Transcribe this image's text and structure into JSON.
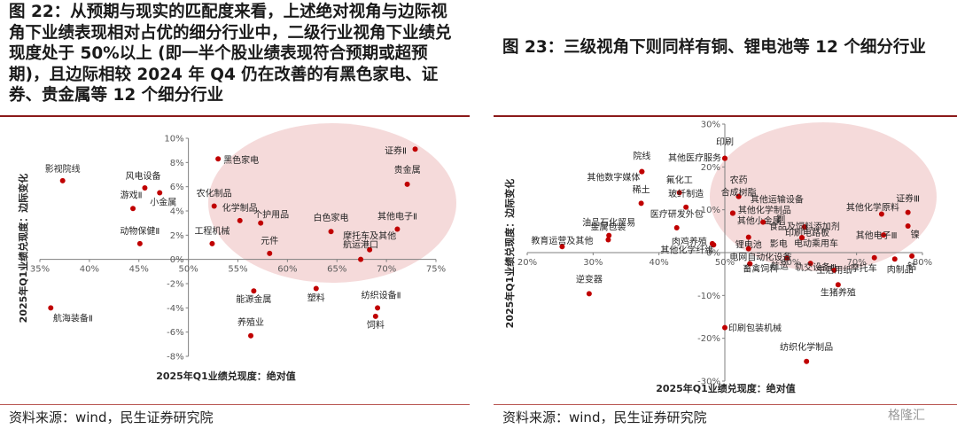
{
  "left": {
    "title": "图 22：从预期与现实的匹配度来看，上述绝对视角与边际视角下业绩表现相对占优的细分行业中，二级行业视角下业绩兑现度处于 50%以上 (即一半个股业绩表现符合预期或超预期)，且边际相较 2024 年 Q4 仍在改善的有黑色家电、证券、贵金属等 12 个细分行业",
    "source": "资料来源：wind，民生证券研究院"
  },
  "right": {
    "title": "图 23：三级视角下则同样有铜、锂电池等 12 个细分行业",
    "source": "资料来源：wind，民生证券研究院"
  },
  "watermark": "格隆汇",
  "colors": {
    "accent": "#8b1a1a",
    "point": "#c00000",
    "highlight": "#f3d3d3",
    "axis": "#7f7f7f"
  },
  "chart_data": [
    {
      "type": "scatter",
      "xlabel": "2025年Q1业绩兑现度：绝对值",
      "ylabel": "2025年Q1业绩兑现度：边际变化",
      "xlim": [
        0.35,
        0.75
      ],
      "ylim": [
        -0.08,
        0.1
      ],
      "xticks": [
        "35%",
        "40%",
        "45%",
        "50%",
        "55%",
        "60%",
        "65%",
        "70%",
        "75%"
      ],
      "yticks": [
        "10%",
        "8%",
        "6%",
        "4%",
        "2%",
        "0%",
        "-2%",
        "-4%",
        "-6%",
        "-8%"
      ],
      "highlight": "ellipse around upper-right quadrant",
      "points": [
        {
          "label": "影视院线",
          "x": 0.373,
          "y": 0.065
        },
        {
          "label": "风电设备",
          "x": 0.456,
          "y": 0.059
        },
        {
          "label": "游戏Ⅱ",
          "x": 0.444,
          "y": 0.042
        },
        {
          "label": "小金属",
          "x": 0.471,
          "y": 0.055
        },
        {
          "label": "动物保健Ⅱ",
          "x": 0.451,
          "y": 0.013
        },
        {
          "label": "航海装备Ⅱ",
          "x": 0.361,
          "y": -0.04
        },
        {
          "label": "黑色家电",
          "x": 0.53,
          "y": 0.083
        },
        {
          "label": "农化制品",
          "x": 0.526,
          "y": 0.044
        },
        {
          "label": "化学制品",
          "x": 0.552,
          "y": 0.032
        },
        {
          "label": "个护用品",
          "x": 0.573,
          "y": 0.03
        },
        {
          "label": "工程机械",
          "x": 0.524,
          "y": 0.013
        },
        {
          "label": "元件",
          "x": 0.582,
          "y": 0.005
        },
        {
          "label": "能源金属",
          "x": 0.566,
          "y": -0.026
        },
        {
          "label": "养殖业",
          "x": 0.563,
          "y": -0.063
        },
        {
          "label": "证券Ⅱ",
          "x": 0.729,
          "y": 0.091
        },
        {
          "label": "贵金属",
          "x": 0.721,
          "y": 0.062
        },
        {
          "label": "白色家电",
          "x": 0.644,
          "y": 0.023
        },
        {
          "label": "其他电子Ⅱ",
          "x": 0.711,
          "y": 0.025
        },
        {
          "label": "摩托车及其他",
          "x": 0.683,
          "y": 0.008
        },
        {
          "label": "航运港口",
          "x": 0.674,
          "y": 0.0
        },
        {
          "label": "塑料",
          "x": 0.629,
          "y": -0.024
        },
        {
          "label": "纺织设备Ⅱ",
          "x": 0.691,
          "y": -0.04
        },
        {
          "label": "饲料",
          "x": 0.689,
          "y": -0.047
        }
      ]
    },
    {
      "type": "scatter",
      "xlabel": "2025年Q1业绩兑现度：绝对值",
      "ylabel": "2025年Q1业绩兑现度：边际变化",
      "xlim": [
        0.2,
        0.8
      ],
      "ylim": [
        -0.3,
        0.3
      ],
      "xticks": [
        "20%",
        "30%",
        "40%",
        "50%",
        "60%",
        "70%",
        "80%"
      ],
      "yticks": [
        "30%",
        "20%",
        "10%",
        "0%",
        "-10%",
        "-20%",
        "-30%"
      ],
      "highlight": "ellipse around upper-right quadrant",
      "points": [
        {
          "label": "院线",
          "x": 0.374,
          "y": 0.189
        },
        {
          "label": "其他数字媒体",
          "x": 0.374,
          "y": 0.189
        },
        {
          "label": "印刷",
          "x": 0.5,
          "y": 0.22
        },
        {
          "label": "其他医疗服务",
          "x": 0.5,
          "y": 0.22
        },
        {
          "label": "氟化工",
          "x": 0.431,
          "y": 0.14
        },
        {
          "label": "稀土",
          "x": 0.373,
          "y": 0.115
        },
        {
          "label": "玻纤制造",
          "x": 0.441,
          "y": 0.106
        },
        {
          "label": "农药",
          "x": 0.521,
          "y": 0.131
        },
        {
          "label": "合成树脂",
          "x": 0.521,
          "y": 0.131
        },
        {
          "label": "医疗研发外包",
          "x": 0.427,
          "y": 0.058
        },
        {
          "label": "油品石化贸易",
          "x": 0.324,
          "y": 0.04
        },
        {
          "label": "金属包装",
          "x": 0.323,
          "y": 0.03
        },
        {
          "label": "教育运营及其他",
          "x": 0.253,
          "y": 0.014
        },
        {
          "label": "其他化学纤维",
          "x": 0.483,
          "y": 0.018
        },
        {
          "label": "肉鸡养殖",
          "x": 0.481,
          "y": 0.021
        },
        {
          "label": "其他运输设备",
          "x": 0.512,
          "y": 0.092
        },
        {
          "label": "其他化学制品",
          "x": 0.512,
          "y": 0.092
        },
        {
          "label": "其他小金属",
          "x": 0.512,
          "y": 0.092
        },
        {
          "label": "铜",
          "x": 0.558,
          "y": 0.071
        },
        {
          "label": "锂电池",
          "x": 0.536,
          "y": 0.036
        },
        {
          "label": "食品及饲料添加剂",
          "x": 0.621,
          "y": 0.06
        },
        {
          "label": "印刷电路板",
          "x": 0.617,
          "y": 0.035
        },
        {
          "label": "电动乘用车",
          "x": 0.617,
          "y": 0.035
        },
        {
          "label": "其他化学原料",
          "x": 0.738,
          "y": 0.09
        },
        {
          "label": "证券Ⅲ",
          "x": 0.778,
          "y": 0.094
        },
        {
          "label": "其他电子Ⅲ",
          "x": 0.741,
          "y": 0.041
        },
        {
          "label": "镍",
          "x": 0.778,
          "y": 0.062
        },
        {
          "label": "影电",
          "x": 0.536,
          "y": 0.009
        },
        {
          "label": "钴",
          "x": 0.784,
          "y": -0.008
        },
        {
          "label": "航运",
          "x": 0.594,
          "y": -0.013
        },
        {
          "label": "轨交设备Ⅲ",
          "x": 0.63,
          "y": -0.025
        },
        {
          "label": "摩托车",
          "x": 0.727,
          "y": -0.012
        },
        {
          "label": "肉制品",
          "x": 0.758,
          "y": -0.015
        },
        {
          "label": "生活用纸",
          "x": 0.666,
          "y": -0.041
        },
        {
          "label": "电网自动化设备",
          "x": 0.538,
          "y": -0.026
        },
        {
          "label": "畜禽饲料",
          "x": 0.538,
          "y": -0.026
        },
        {
          "label": "生猪养殖",
          "x": 0.672,
          "y": -0.075
        },
        {
          "label": "印刷包装机械",
          "x": 0.5,
          "y": -0.175
        },
        {
          "label": "纺织化学制品",
          "x": 0.624,
          "y": -0.254
        },
        {
          "label": "逆变器",
          "x": 0.294,
          "y": -0.096
        }
      ]
    }
  ]
}
